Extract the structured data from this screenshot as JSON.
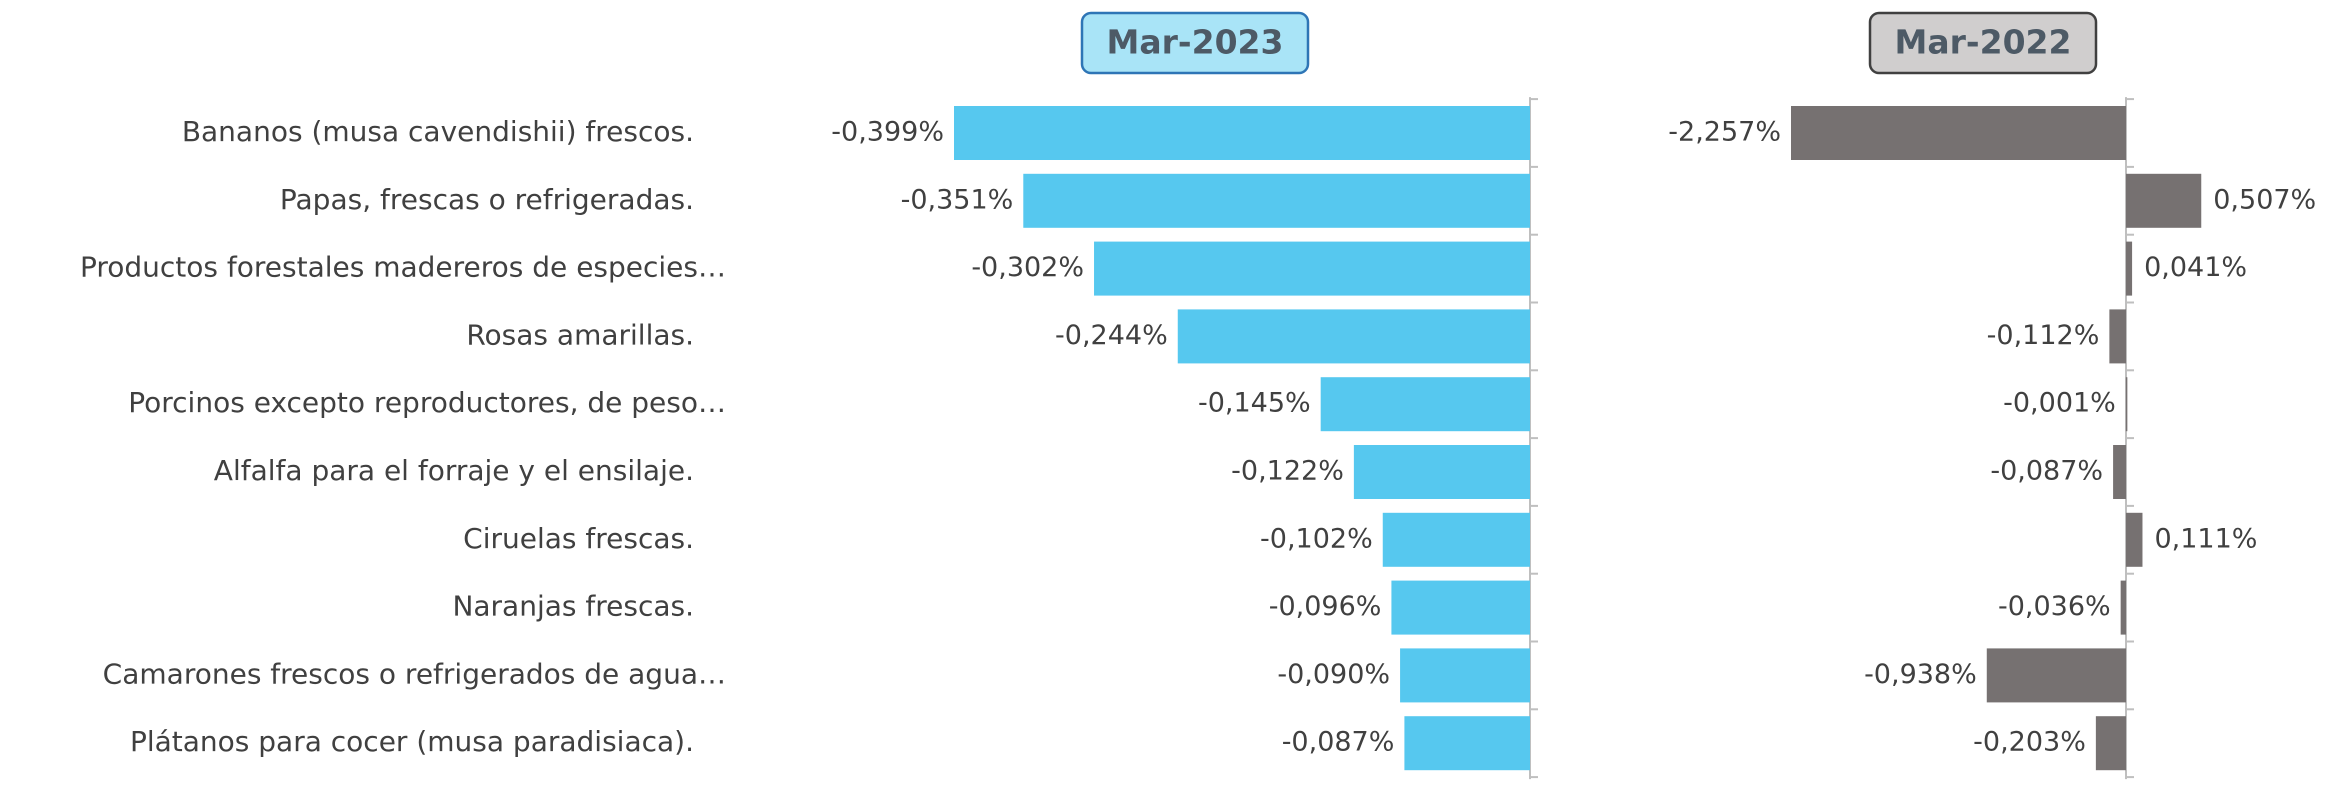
{
  "chart_data": [
    {
      "type": "bar",
      "orientation": "horizontal",
      "title": "Mar-2023",
      "color": "#56c8ef",
      "categories": [
        "Bananos (musa cavendishii) frescos.",
        "Papas, frescas o refrigeradas.",
        "Productos forestales madereros de especies…",
        "Rosas amarillas.",
        "Porcinos excepto reproductores, de peso…",
        "Alfalfa para el forraje y el ensilaje.",
        "Ciruelas frescas.",
        "Naranjas frescas.",
        "Camarones frescos o refrigerados de agua…",
        "Plátanos para cocer (musa paradisiaca)."
      ],
      "values": [
        -0.399,
        -0.351,
        -0.302,
        -0.244,
        -0.145,
        -0.122,
        -0.102,
        -0.096,
        -0.09,
        -0.087
      ],
      "value_labels": [
        "-0,399%",
        "-0,351%",
        "-0,302%",
        "-0,244%",
        "-0,145%",
        "-0,122%",
        "-0,102%",
        "-0,096%",
        "-0,090%",
        "-0,087%"
      ]
    },
    {
      "type": "bar",
      "orientation": "horizontal",
      "title": "Mar-2022",
      "color": "#767171",
      "values": [
        -2.257,
        0.507,
        0.041,
        -0.112,
        -0.001,
        -0.087,
        0.111,
        -0.036,
        -0.938,
        -0.203
      ],
      "value_labels": [
        "-2,257%",
        "0,507%",
        "0,041%",
        "-0,112%",
        "-0,001%",
        "-0,087%",
        "0,111%",
        "-0,036%",
        "-0,938%",
        "-0,203%"
      ]
    }
  ]
}
